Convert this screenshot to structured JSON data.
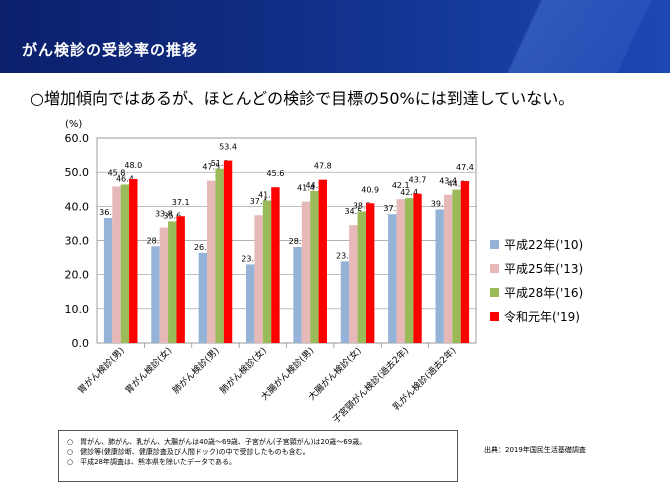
{
  "header": {
    "title": "がん検診の受診率の推移"
  },
  "headline": "○増加傾向ではあるが、ほとんどの検診で目標の50%には到達していない。",
  "notes": [
    "○　胃がん、肺がん、乳がん、大腸がんは40歳～69歳、子宮がん(子宮頸がん)は20歳～69歳。",
    "○　健診等(健康診断、健康診査及び人間ドック)の中で受診したものも含む。",
    "○　平成28年調査は、熊本県を除いたデータである。"
  ],
  "source": "出典：2019年国民生活基礎調査",
  "colors": {
    "s1": "#95B3D7",
    "s2": "#E6B9B8",
    "s3": "#9BBB59",
    "s4": "#FF0000"
  },
  "chart_data": {
    "type": "bar",
    "ylabel": "(%)",
    "ylim": [
      0,
      60
    ],
    "yticks": [
      "0.0",
      "10.0",
      "20.0",
      "30.0",
      "40.0",
      "50.0",
      "60.0"
    ],
    "grid": true,
    "legend_position": "right",
    "categories": [
      "胃がん検診(男)",
      "胃がん検診(女)",
      "肺がん検診(男)",
      "肺がん検診(女)",
      "大腸がん検診(男)",
      "大腸がん検診(女)",
      "子宮頸がん検診(過去2年)",
      "乳がん検診(過去2年)"
    ],
    "series": [
      {
        "name": "平成22年('10)",
        "values": [
          36.6,
          28.3,
          26.4,
          23.0,
          28.1,
          23.9,
          37.7,
          39.1
        ]
      },
      {
        "name": "平成25年('13)",
        "values": [
          45.8,
          33.8,
          47.5,
          37.4,
          41.4,
          34.5,
          42.1,
          43.4
        ]
      },
      {
        "name": "平成28年('16)",
        "values": [
          46.4,
          35.6,
          51.0,
          41.7,
          44.5,
          38.5,
          42.4,
          44.9
        ]
      },
      {
        "name": "令和元年('19)",
        "values": [
          48.0,
          37.1,
          53.4,
          45.6,
          47.8,
          40.9,
          43.7,
          47.4
        ]
      }
    ]
  }
}
